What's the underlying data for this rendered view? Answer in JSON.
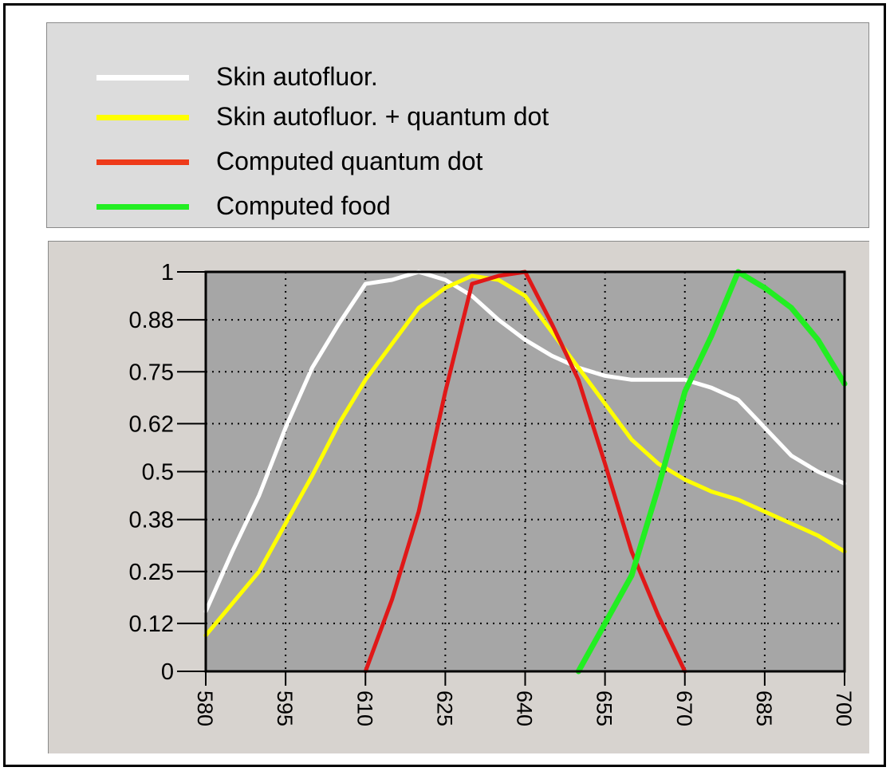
{
  "chart_data": {
    "type": "line",
    "title": "",
    "xlabel": "",
    "ylabel": "",
    "xlim": [
      580,
      700
    ],
    "ylim": [
      0,
      1
    ],
    "x_ticks": [
      "580",
      "595",
      "610",
      "625",
      "640",
      "655",
      "670",
      "685",
      "700"
    ],
    "y_ticks": [
      "0",
      "0.12",
      "0.25",
      "0.38",
      "0.5",
      "0.62",
      "0.75",
      "0.88",
      "1"
    ],
    "grid": true,
    "legend_position": "top",
    "series": [
      {
        "name": "Skin autofluor.",
        "color": "#ffffff",
        "x": [
          580,
          585,
          590,
          595,
          600,
          605,
          610,
          615,
          620,
          625,
          630,
          635,
          640,
          645,
          650,
          655,
          660,
          665,
          670,
          675,
          680,
          685,
          690,
          695,
          700
        ],
        "y": [
          0.15,
          0.3,
          0.44,
          0.61,
          0.76,
          0.87,
          0.97,
          0.98,
          1.0,
          0.98,
          0.94,
          0.88,
          0.83,
          0.79,
          0.76,
          0.74,
          0.73,
          0.73,
          0.73,
          0.71,
          0.68,
          0.61,
          0.54,
          0.5,
          0.47
        ]
      },
      {
        "name": "Skin autofluor. + quantum dot",
        "color": "#ffff00",
        "x": [
          580,
          585,
          590,
          595,
          600,
          605,
          610,
          615,
          620,
          625,
          630,
          635,
          640,
          645,
          650,
          655,
          660,
          665,
          670,
          675,
          680,
          685,
          690,
          695,
          700
        ],
        "y": [
          0.09,
          0.17,
          0.25,
          0.37,
          0.49,
          0.62,
          0.73,
          0.82,
          0.91,
          0.96,
          0.99,
          0.98,
          0.94,
          0.85,
          0.76,
          0.67,
          0.58,
          0.52,
          0.48,
          0.45,
          0.43,
          0.4,
          0.37,
          0.34,
          0.3
        ]
      },
      {
        "name": "Computed quantum dot",
        "color": "#e01818",
        "x": [
          610,
          615,
          620,
          625,
          630,
          635,
          640,
          645,
          650,
          655,
          660,
          665,
          670
        ],
        "y": [
          0.0,
          0.18,
          0.4,
          0.7,
          0.97,
          0.99,
          1.0,
          0.87,
          0.73,
          0.52,
          0.3,
          0.14,
          0.0
        ]
      },
      {
        "name": "Computed food",
        "color": "#22ee22",
        "x": [
          650,
          655,
          660,
          665,
          670,
          675,
          680,
          685,
          690,
          695,
          700
        ],
        "y": [
          0.0,
          0.12,
          0.24,
          0.46,
          0.7,
          0.84,
          1.0,
          0.96,
          0.91,
          0.83,
          0.72
        ]
      }
    ]
  },
  "legend": {
    "items": [
      {
        "label": "Skin autofluor.",
        "color": "#ffffff"
      },
      {
        "label": "Skin autofluor. + quantum dot",
        "color": "#ffff00"
      },
      {
        "label": "Computed quantum dot",
        "color": "#ee3a1a"
      },
      {
        "label": "Computed food",
        "color": "#22ee22"
      }
    ]
  },
  "colors": {
    "plot_background": "#a6a6a6",
    "panel_background": "#d7d3cf",
    "legend_background": "#dcdcdc",
    "grid": "#000000"
  }
}
